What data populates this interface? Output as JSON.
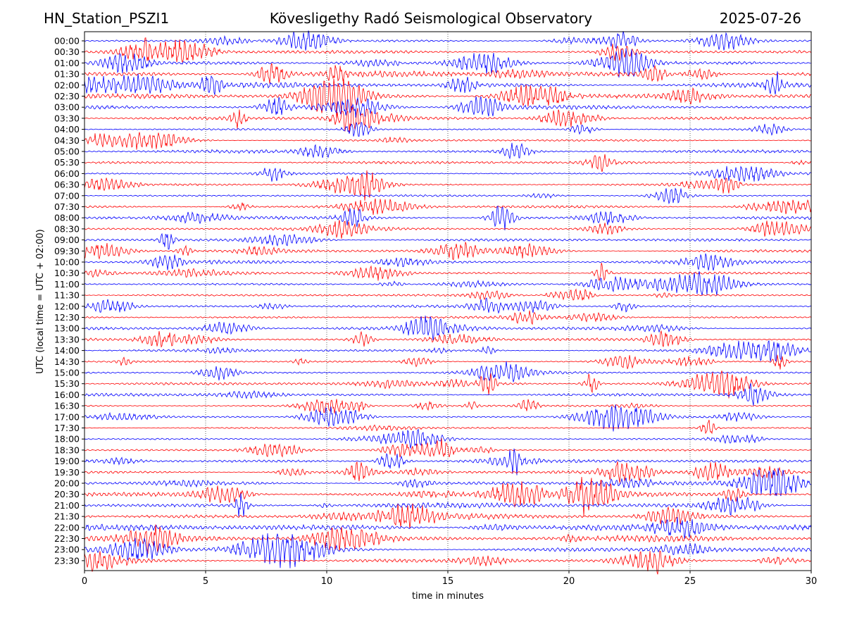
{
  "header": {
    "station": "HN_Station_PSZI1",
    "title": "Kövesligethy Radó Seismological Observatory",
    "date": "2025-07-26"
  },
  "chart_data": {
    "type": "line",
    "title": "Kövesligethy Radó Seismological Observatory",
    "xlabel": "time in minutes",
    "ylabel": "UTC (local time = UTC + 02:00)",
    "xlim": [
      0,
      30
    ],
    "xticks": [
      0,
      5,
      10,
      15,
      20,
      25,
      30
    ],
    "vertical_gridlines": [
      5,
      10,
      15,
      20,
      25
    ],
    "grid": "vertical dotted",
    "colors": [
      "#0000ff",
      "#ff0000"
    ],
    "rows": [
      "00:00",
      "00:30",
      "01:00",
      "01:30",
      "02:00",
      "02:30",
      "03:00",
      "03:30",
      "04:00",
      "04:30",
      "05:00",
      "05:30",
      "06:00",
      "06:30",
      "07:00",
      "07:30",
      "08:00",
      "08:30",
      "09:00",
      "09:30",
      "10:00",
      "10:30",
      "11:00",
      "11:30",
      "12:00",
      "12:30",
      "13:00",
      "13:30",
      "14:00",
      "14:30",
      "15:00",
      "15:30",
      "16:00",
      "16:30",
      "17:00",
      "17:30",
      "18:00",
      "18:30",
      "19:00",
      "19:30",
      "20:00",
      "20:30",
      "21:00",
      "21:30",
      "22:00",
      "22:30",
      "23:00",
      "23:30"
    ],
    "activity": [
      0.15,
      0.35,
      0.25,
      0.7,
      0.6,
      0.5,
      0.4,
      0.3,
      0.08,
      0.15,
      0.3,
      0.25,
      0.12,
      0.12,
      0.12,
      0.2,
      0.3,
      0.3,
      0.25,
      0.3,
      0.35,
      0.2,
      0.12,
      0.15,
      0.2,
      0.2,
      0.3,
      0.2,
      0.2,
      0.1,
      0.2,
      0.4,
      0.25,
      0.1,
      0.08,
      0.06,
      0.06,
      0.1,
      0.35,
      0.3,
      0.4,
      0.45,
      0.6,
      0.6,
      0.75,
      0.7,
      0.5,
      0.35
    ]
  }
}
